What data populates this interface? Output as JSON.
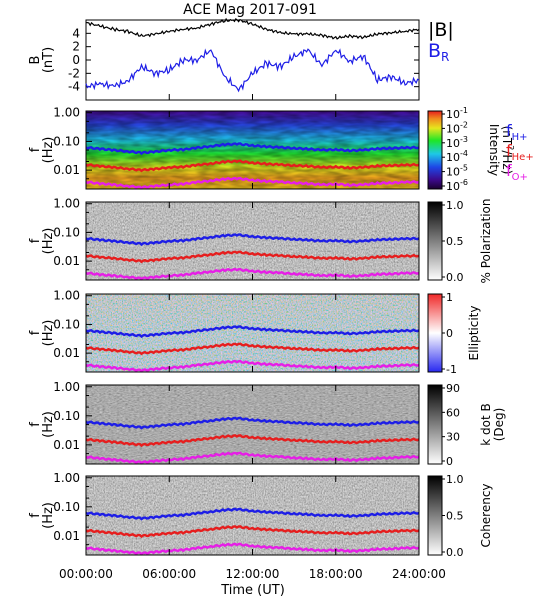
{
  "chart_data": [
    {
      "type": "line",
      "title": "ACE Mag 2017-091",
      "ylabel": "B (nT)",
      "y_ticks": [
        "4",
        "2",
        "0",
        "-2",
        "-4"
      ],
      "ylim": [
        -6,
        6
      ],
      "xlim": [
        0,
        24
      ],
      "series": [
        {
          "name": "|B|",
          "color": "#000000",
          "x": [
            0,
            1,
            2,
            3,
            4,
            5,
            6,
            7,
            8,
            9,
            10,
            11,
            12,
            13,
            14,
            15,
            16,
            17,
            18,
            19,
            20,
            21,
            22,
            23,
            24
          ],
          "values": [
            5.6,
            5.1,
            4.6,
            4.3,
            3.6,
            3.9,
            4.3,
            4.6,
            4.8,
            5.4,
            5.9,
            6.0,
            5.4,
            4.6,
            4.1,
            3.9,
            3.9,
            3.7,
            3.3,
            3.6,
            3.4,
            3.9,
            4.1,
            4.3,
            4.6
          ]
        },
        {
          "name": "B",
          "subscript": "R",
          "color": "#1e1ee6",
          "x": [
            0,
            1,
            2,
            3,
            4,
            5,
            6,
            7,
            8,
            9,
            10,
            11,
            12,
            13,
            14,
            15,
            16,
            17,
            18,
            19,
            20,
            21,
            22,
            23,
            24
          ],
          "values": [
            -4.0,
            -3.6,
            -3.9,
            -3.2,
            -1.0,
            -2.0,
            -1.5,
            0.0,
            0.0,
            1.5,
            -2.5,
            -4.5,
            -2.0,
            -0.5,
            -1.0,
            0.5,
            1.5,
            -0.8,
            1.5,
            -0.2,
            0.6,
            -3.0,
            -2.5,
            -3.5,
            -3.0
          ]
        }
      ]
    },
    {
      "type": "heatmap",
      "ylabel": "f (Hz)",
      "y_ticks": [
        "1.00",
        "0.10",
        "0.01"
      ],
      "colorbar": {
        "label": "Intensity (nT²/Hz)",
        "ticks": [
          "10",
          "10",
          "10",
          "10",
          "10",
          "10"
        ],
        "exponents": [
          "-1",
          "-2",
          "-3",
          "-4",
          "-5",
          "-6"
        ],
        "scale": "log",
        "colormap": "rainbow"
      },
      "gyrofrequency_labels": true
    },
    {
      "type": "heatmap",
      "ylabel": "f (Hz)",
      "y_ticks": [
        "1.00",
        "0.10",
        "0.01"
      ],
      "colorbar": {
        "label": "% Polarization",
        "ticks": [
          "1.0",
          "0.5",
          "0.0"
        ],
        "colormap": "gray"
      }
    },
    {
      "type": "heatmap",
      "ylabel": "f (Hz)",
      "y_ticks": [
        "1.00",
        "0.10",
        "0.01"
      ],
      "colorbar": {
        "label": "Ellipticity",
        "ticks": [
          "1",
          "0",
          "-1"
        ],
        "colormap": "blue-white-red"
      }
    },
    {
      "type": "heatmap",
      "ylabel": "f (Hz)",
      "y_ticks": [
        "1.00",
        "0.10",
        "0.01"
      ],
      "colorbar": {
        "label": "k dot B (Deg)",
        "ticks": [
          "90",
          "60",
          "30",
          "0"
        ],
        "colormap": "gray"
      }
    },
    {
      "type": "heatmap",
      "ylabel": "f (Hz)",
      "y_ticks": [
        "1.00",
        "0.10",
        "0.01"
      ],
      "colorbar": {
        "label": "Coherency",
        "ticks": [
          "1.0",
          "0.5",
          "0.0"
        ],
        "colormap": "gray"
      },
      "xlabel": "Time (UT)",
      "x_ticks": [
        "00:00:00",
        "06:00:00",
        "12:00:00",
        "18:00:00",
        "24:00:00"
      ]
    }
  ],
  "gyrofrequency_lines": {
    "x_hours": [
      0,
      1,
      2,
      3,
      4,
      5,
      6,
      7,
      8,
      9,
      10,
      11,
      12,
      13,
      14,
      15,
      16,
      17,
      18,
      19,
      20,
      21,
      22,
      23,
      24
    ],
    "f_H_plus_hz": [
      0.062,
      0.055,
      0.05,
      0.045,
      0.04,
      0.044,
      0.05,
      0.052,
      0.06,
      0.068,
      0.078,
      0.082,
      0.072,
      0.066,
      0.062,
      0.058,
      0.055,
      0.05,
      0.052,
      0.048,
      0.05,
      0.056,
      0.058,
      0.06,
      0.062
    ],
    "f_He_plus_hz": [
      0.0155,
      0.0138,
      0.0125,
      0.0112,
      0.01,
      0.011,
      0.0125,
      0.013,
      0.015,
      0.017,
      0.0195,
      0.0205,
      0.018,
      0.0165,
      0.0155,
      0.0145,
      0.0138,
      0.0125,
      0.013,
      0.012,
      0.0125,
      0.014,
      0.0145,
      0.015,
      0.0155
    ],
    "f_O_plus_hz": [
      0.0039,
      0.0034,
      0.0031,
      0.0028,
      0.0025,
      0.0028,
      0.0031,
      0.0033,
      0.0038,
      0.0043,
      0.0049,
      0.0051,
      0.0045,
      0.0041,
      0.0039,
      0.0036,
      0.0034,
      0.0031,
      0.0033,
      0.003,
      0.0031,
      0.0035,
      0.0036,
      0.0038,
      0.0039
    ],
    "colors": {
      "h": "#1e1ee6",
      "he": "#e61e1e",
      "o": "#e61ee6"
    }
  },
  "labels": {
    "title": "ACE Mag 2017-091",
    "b_label": "B",
    "b_unit": "(nT)",
    "f_label": "f",
    "f_unit": "(Hz)",
    "legend_absB": "|B|",
    "legend_BR": "B",
    "legend_BR_sub": "R",
    "fH": "f",
    "fH_sup": "H+",
    "fHe": "f",
    "fHe_sup": "He+",
    "fO": "f",
    "fO_sup": "O+",
    "xlabel": "Time (UT)",
    "intensity_label": "Intensity",
    "intensity_unit": "(nT",
    "intensity_unit_sup": "2",
    "intensity_unit_tail": "/Hz)",
    "pol_label": "% Polarization",
    "ell_label": "Ellipticity",
    "kb_label": "k dot B",
    "kb_unit": "(Deg)",
    "coh_label": "Coherency"
  }
}
